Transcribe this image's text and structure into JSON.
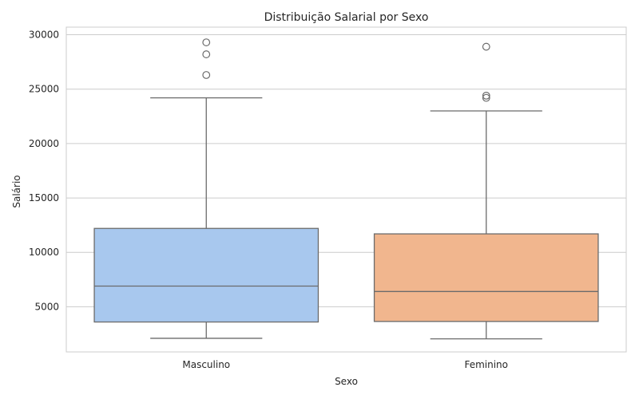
{
  "chart_data": {
    "type": "box",
    "title": "Distribuição Salarial por Sexo",
    "xlabel": "Sexo",
    "ylabel": "Salário",
    "ylim": [
      850,
      30700
    ],
    "yticks": [
      5000,
      10000,
      15000,
      20000,
      25000,
      30000
    ],
    "grid": "y",
    "categories": [
      "Masculino",
      "Feminino"
    ],
    "colors": [
      "#a8c8ee",
      "#f1b68e"
    ],
    "edge_color": "#6b6b6b",
    "boxes": [
      {
        "category": "Masculino",
        "whisker_low": 2100,
        "q1": 3600,
        "median": 6900,
        "q3": 12200,
        "whisker_high": 24200,
        "outliers": [
          26300,
          28200,
          29300
        ]
      },
      {
        "category": "Feminino",
        "whisker_low": 2050,
        "q1": 3650,
        "median": 6400,
        "q3": 11700,
        "whisker_high": 23000,
        "outliers": [
          24200,
          24400,
          28900
        ]
      }
    ]
  }
}
